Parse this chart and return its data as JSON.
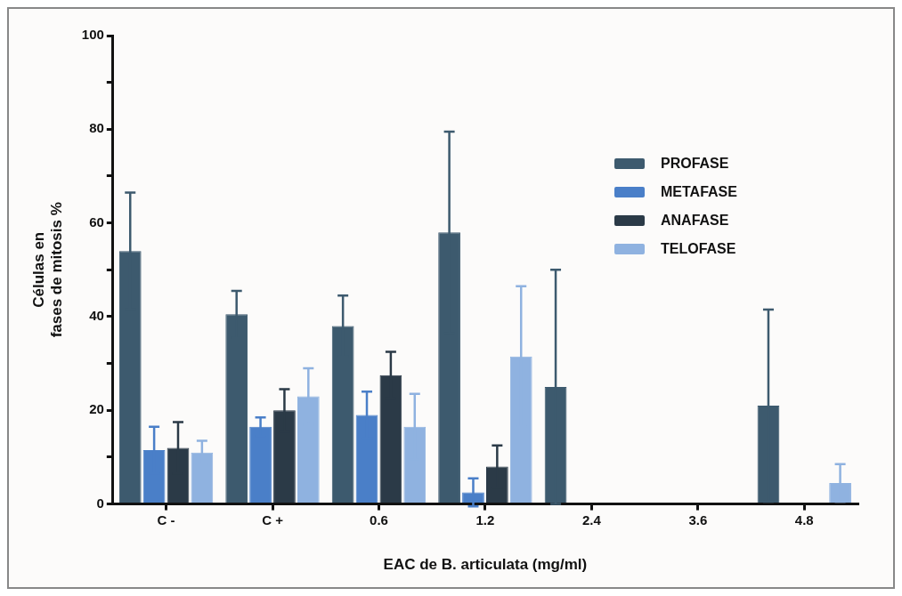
{
  "chart_data": {
    "type": "bar",
    "xlabel": "EAC de B. articulata (mg/ml)",
    "ylabel": "Células en\nfases de mitosis %",
    "categories": [
      "C -",
      "C +",
      "0.6",
      "1.2",
      "2.4",
      "3.6",
      "4.8"
    ],
    "series": [
      {
        "name": "PROFASE",
        "color": "#3d5a6e",
        "values": [
          54,
          40.5,
          38,
          58,
          25,
          0,
          21
        ],
        "errors": [
          12.5,
          5,
          6.5,
          21.5,
          25,
          null,
          20.5
        ]
      },
      {
        "name": "METAFASE",
        "color": "#4a7fc8",
        "values": [
          11.5,
          16.5,
          19,
          2.5,
          0,
          0,
          0
        ],
        "errors": [
          5,
          2,
          5,
          3,
          null,
          null,
          null
        ]
      },
      {
        "name": "ANAFASE",
        "color": "#2b3a47",
        "values": [
          12,
          20,
          27.5,
          8,
          0,
          0,
          0
        ],
        "errors": [
          5.5,
          4.5,
          5,
          4.5,
          null,
          null,
          null
        ]
      },
      {
        "name": "TELOFASE",
        "color": "#8fb2e0",
        "values": [
          11,
          23,
          16.5,
          31.5,
          0,
          0,
          4.5
        ],
        "errors": [
          2.5,
          6,
          7,
          15,
          null,
          null,
          4
        ]
      }
    ],
    "ylim": [
      0,
      100
    ],
    "yticks": [
      0,
      {
        "value": 10,
        "label": null
      },
      20,
      {
        "value": 30,
        "label": null
      },
      40,
      {
        "value": 50,
        "label": null
      },
      60,
      {
        "value": 70,
        "label": null
      },
      80,
      {
        "value": 90,
        "label": null
      },
      100
    ],
    "grid": false,
    "legend": "top right"
  }
}
